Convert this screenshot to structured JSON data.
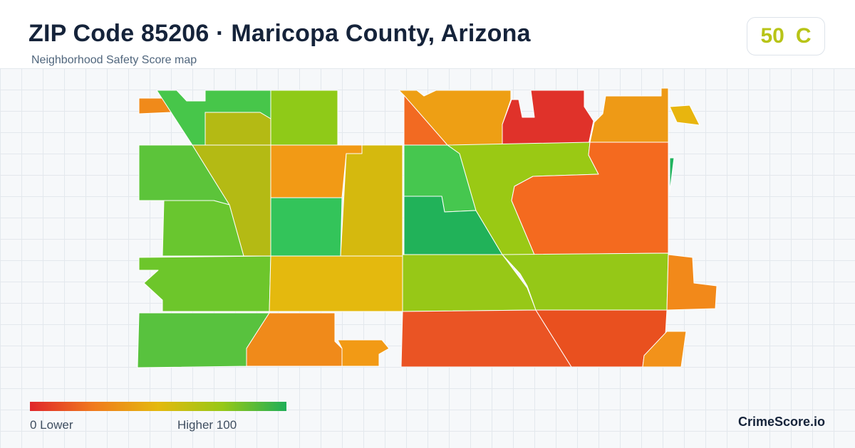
{
  "header": {
    "title": "ZIP Code 85206 · Maricopa County, Arizona",
    "subtitle": "Neighborhood Safety Score map"
  },
  "score": {
    "value": "50",
    "grade": "C",
    "color": "#b8c417"
  },
  "legend": {
    "low_label": "0  Lower",
    "high_label": "Higher  100",
    "gradient": [
      "#e0262b",
      "#f07b1d",
      "#e4b90e",
      "#97c817",
      "#1fae57"
    ]
  },
  "brand": "CrimeScore.io",
  "colors": {
    "background": "#f6f8fa",
    "header": "#ffffff",
    "title_text": "#15233a",
    "subtitle_text": "#50667d"
  }
}
